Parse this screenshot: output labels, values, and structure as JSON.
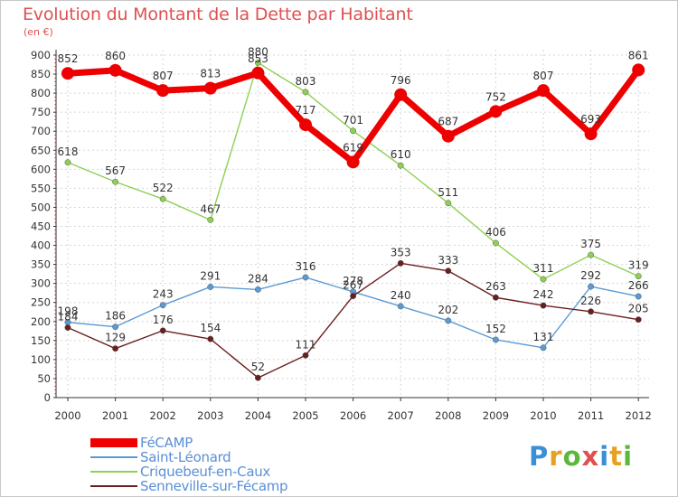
{
  "title": "Evolution du Montant de la Dette par Habitant",
  "subtitle": "(en €)",
  "logo": {
    "text": "Proxiti",
    "letter_colors": [
      "#3b8fd6",
      "#e8a020",
      "#5cb83a",
      "#e05050",
      "#3b8fd6",
      "#e8a020",
      "#5cb83a"
    ]
  },
  "chart_data": {
    "type": "line",
    "title": "Evolution du Montant de la Dette par Habitant",
    "subtitle": "(en €)",
    "x": [
      "2000",
      "2001",
      "2002",
      "2003",
      "2004",
      "2005",
      "2006",
      "2007",
      "2008",
      "2009",
      "2010",
      "2011",
      "2012"
    ],
    "ylim": [
      0,
      900
    ],
    "yticks": [
      0,
      50,
      100,
      150,
      200,
      250,
      300,
      350,
      400,
      450,
      500,
      550,
      600,
      650,
      700,
      750,
      800,
      850,
      900
    ],
    "grid": true,
    "legend_position": "bottom-left",
    "series": [
      {
        "name": "FéCAMP",
        "color": "#ee0000",
        "values": [
          852,
          860,
          807,
          813,
          853,
          717,
          619,
          796,
          687,
          752,
          807,
          693,
          861
        ]
      },
      {
        "name": "Saint-Léonard",
        "color": "#5b9bd5",
        "values": [
          198,
          186,
          243,
          291,
          284,
          316,
          278,
          240,
          202,
          152,
          131,
          292,
          266
        ]
      },
      {
        "name": "Criquebeuf-en-Caux",
        "color": "#8ed053",
        "values": [
          618,
          567,
          522,
          467,
          880,
          803,
          701,
          610,
          511,
          406,
          311,
          375,
          319
        ]
      },
      {
        "name": "Senneville-sur-Fécamp",
        "color": "#6b1e1e",
        "values": [
          184,
          129,
          176,
          154,
          52,
          111,
          267,
          353,
          333,
          263,
          242,
          226,
          205
        ]
      }
    ]
  }
}
